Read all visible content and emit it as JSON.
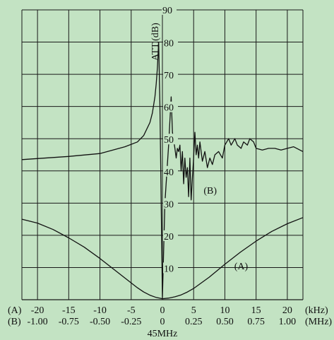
{
  "chart_data": {
    "type": "line",
    "ylabel": "ATT.(dB)",
    "ylim": [
      0,
      90
    ],
    "y_ticks": [
      10,
      20,
      30,
      40,
      50,
      60,
      70,
      80,
      90
    ],
    "grid": true,
    "x_axis_A": {
      "prefix": "(A)",
      "unit": "(kHz)",
      "ticks": [
        "-20",
        "-15",
        "-10",
        "-5",
        "0",
        "5",
        "10",
        "15",
        "20"
      ],
      "range": [
        -22.5,
        22.5
      ]
    },
    "x_axis_B": {
      "prefix": "(B)",
      "unit": "(MHz)",
      "ticks": [
        "-1.00",
        "-0.75",
        "-0.50",
        "-0.25",
        "0",
        "0.25",
        "0.50",
        "0.75",
        "1.00"
      ],
      "range": [
        -1.125,
        1.125
      ]
    },
    "center_label": "45MHz",
    "series": [
      {
        "name": "(A)",
        "x_unit": "kHz",
        "x": [
          -22.5,
          -20,
          -17.5,
          -15,
          -12.5,
          -10,
          -7.5,
          -5,
          -4,
          -3,
          -2,
          -1,
          0,
          1,
          2,
          3,
          4,
          5,
          7.5,
          10,
          12.5,
          15,
          17.5,
          20,
          22.5
        ],
        "y": [
          25.0,
          23.8,
          21.8,
          19.2,
          16.3,
          12.8,
          9.0,
          5.2,
          3.7,
          2.4,
          1.4,
          0.7,
          0.3,
          0.5,
          0.9,
          1.5,
          2.4,
          3.5,
          7.0,
          11.0,
          14.8,
          18.2,
          21.2,
          23.6,
          25.5
        ]
      },
      {
        "name": "(B)",
        "x_unit": "MHz",
        "x": [
          -1.125,
          -0.75,
          -0.5,
          -0.3,
          -0.2,
          -0.15,
          -0.1,
          -0.08,
          -0.06,
          -0.05,
          -0.04,
          -0.03,
          -0.02,
          0,
          0.02,
          0.05,
          0.07,
          0.08,
          0.1,
          0.11,
          0.12,
          0.13,
          0.14,
          0.15,
          0.16,
          0.17,
          0.18,
          0.19,
          0.2,
          0.21,
          0.22,
          0.23,
          0.24,
          0.25,
          0.26,
          0.27,
          0.28,
          0.29,
          0.3,
          0.32,
          0.34,
          0.36,
          0.38,
          0.4,
          0.42,
          0.45,
          0.48,
          0.5,
          0.53,
          0.55,
          0.58,
          0.6,
          0.63,
          0.65,
          0.68,
          0.7,
          0.73,
          0.75,
          0.8,
          0.85,
          0.9,
          0.95,
          1.0,
          1.05,
          1.1,
          1.125
        ],
        "y": [
          43.5,
          44.5,
          45.4,
          47.5,
          49.0,
          51.0,
          55.0,
          58.0,
          63.0,
          67.0,
          72.0,
          80.0,
          60.0,
          0.5,
          30.0,
          48.0,
          63.0,
          52.0,
          47.0,
          44.0,
          47.0,
          46.0,
          48.0,
          40.0,
          46.0,
          36.0,
          44.0,
          38.0,
          41.0,
          32.0,
          44.0,
          31.0,
          38.0,
          44.0,
          52.0,
          45.0,
          48.0,
          44.0,
          49.0,
          43.0,
          46.0,
          41.0,
          44.0,
          42.0,
          45.0,
          46.0,
          44.0,
          48.0,
          50.0,
          48.0,
          50.0,
          48.0,
          47.0,
          49.0,
          48.0,
          50.0,
          49.0,
          47.0,
          46.5,
          47.0,
          47.0,
          46.5,
          47.0,
          47.5,
          46.5,
          46.0
        ]
      }
    ],
    "annotations": [
      {
        "text": "(A)",
        "x": 11.5,
        "y": 10.5,
        "x_unit": "kHz"
      },
      {
        "text": "(B)",
        "x": 0.33,
        "y": 34.0,
        "x_unit": "MHz"
      }
    ]
  }
}
